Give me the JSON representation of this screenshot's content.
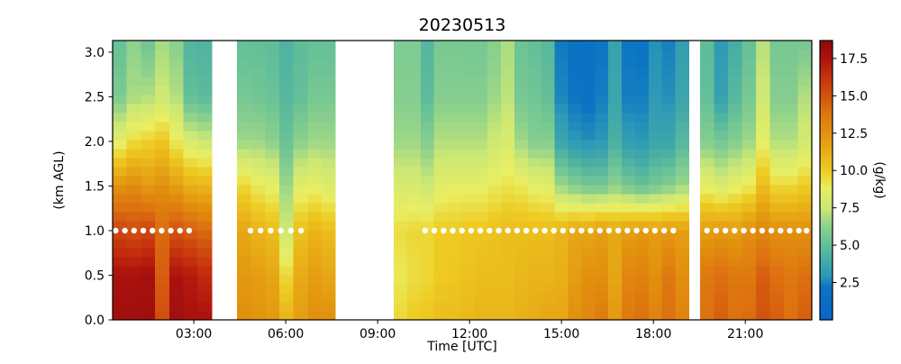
{
  "figure": {
    "background": "#ffffff",
    "title": "20230513",
    "xlabel": "Time [UTC]",
    "ylabel": "(km AGL)",
    "colorbar_label": "(g/kg)"
  },
  "chart_data": {
    "type": "heatmap",
    "title": "20230513",
    "xlabel": "Time [UTC]",
    "ylabel": "(km AGL)",
    "colorbar_label": "(g/kg)",
    "x_units": "hours UTC",
    "y_units": "km AGL",
    "value_units": "g/kg",
    "xlim": [
      0.35,
      23.17
    ],
    "ylim": [
      0,
      3.13
    ],
    "grid": false,
    "xticks": [
      {
        "t": 3,
        "label": "03:00"
      },
      {
        "t": 6,
        "label": "06:00"
      },
      {
        "t": 9,
        "label": "09:00"
      },
      {
        "t": 12,
        "label": "12:00"
      },
      {
        "t": 15,
        "label": "15:00"
      },
      {
        "t": 18,
        "label": "18:00"
      },
      {
        "t": 21,
        "label": "21:00"
      }
    ],
    "yticks": [
      0.0,
      0.5,
      1.0,
      1.5,
      2.0,
      2.5,
      3.0
    ],
    "colorbar": {
      "vmin": 0,
      "vmax": 18.7,
      "ticks": [
        2.5,
        5.0,
        7.5,
        10.0,
        12.5,
        15.0,
        17.5
      ],
      "stops": [
        [
          0.0,
          "#0a64c8"
        ],
        [
          2.2,
          "#0b74c4"
        ],
        [
          3.0,
          "#2e9ab6"
        ],
        [
          4.0,
          "#45aca6"
        ],
        [
          5.0,
          "#63bf99"
        ],
        [
          6.3,
          "#8fd28c"
        ],
        [
          7.5,
          "#cde874"
        ],
        [
          8.8,
          "#e9ee62"
        ],
        [
          10.0,
          "#eecb22"
        ],
        [
          12.5,
          "#e2920e"
        ],
        [
          14.0,
          "#dd7010"
        ],
        [
          15.0,
          "#d2520f"
        ],
        [
          16.5,
          "#c22c0e"
        ],
        [
          17.5,
          "#ad120d"
        ],
        [
          18.7,
          "#8d0a0c"
        ]
      ]
    },
    "data_gaps_hours": [
      [
        3.58,
        4.41
      ],
      [
        7.62,
        9.53
      ],
      [
        19.16,
        19.53
      ]
    ],
    "profile_heights_km": [
      0,
      0.5,
      1.0,
      1.5,
      2.0,
      2.5,
      3.2
    ],
    "columns": [
      {
        "t0": 0.35,
        "t1": 0.81,
        "q": [
          18.0,
          17.6,
          15.5,
          12.5,
          8.5,
          5.8,
          5.0
        ]
      },
      {
        "t0": 0.81,
        "t1": 1.27,
        "q": [
          18.0,
          17.6,
          15.2,
          12.8,
          9.5,
          6.8,
          6.2
        ]
      },
      {
        "t0": 1.27,
        "t1": 1.73,
        "q": [
          18.0,
          17.8,
          15.5,
          12.2,
          9.8,
          7.0,
          5.2
        ]
      },
      {
        "t0": 1.73,
        "t1": 2.2,
        "q": [
          15.2,
          14.6,
          14.2,
          12.6,
          10.2,
          7.6,
          6.6
        ]
      },
      {
        "t0": 2.2,
        "t1": 2.66,
        "q": [
          18.0,
          17.5,
          15.0,
          12.0,
          9.0,
          7.0,
          6.0
        ]
      },
      {
        "t0": 2.66,
        "t1": 3.12,
        "q": [
          17.6,
          17.2,
          14.6,
          11.2,
          8.0,
          5.0,
          4.4
        ]
      },
      {
        "t0": 3.12,
        "t1": 3.58,
        "q": [
          17.6,
          16.6,
          14.2,
          11.0,
          7.6,
          4.8,
          4.3
        ]
      },
      {
        "t0": 4.41,
        "t1": 4.87,
        "q": [
          12.6,
          12.2,
          11.6,
          9.6,
          6.6,
          5.6,
          5.0
        ]
      },
      {
        "t0": 4.87,
        "t1": 5.33,
        "q": [
          12.4,
          12.0,
          11.0,
          9.0,
          6.6,
          5.4,
          5.0
        ]
      },
      {
        "t0": 5.33,
        "t1": 5.79,
        "q": [
          12.2,
          11.6,
          10.6,
          8.6,
          6.2,
          5.2,
          4.8
        ]
      },
      {
        "t0": 5.79,
        "t1": 6.25,
        "q": [
          11.0,
          9.6,
          7.6,
          6.6,
          5.2,
          4.6,
          4.3
        ]
      },
      {
        "t0": 6.25,
        "t1": 6.71,
        "q": [
          12.0,
          11.4,
          10.4,
          8.4,
          6.2,
          5.0,
          4.8
        ]
      },
      {
        "t0": 6.71,
        "t1": 7.16,
        "q": [
          12.6,
          12.0,
          11.0,
          8.6,
          6.6,
          5.6,
          5.0
        ]
      },
      {
        "t0": 7.16,
        "t1": 7.62,
        "q": [
          12.6,
          11.6,
          10.6,
          8.2,
          6.6,
          5.6,
          5.0
        ]
      },
      {
        "t0": 9.53,
        "t1": 9.97,
        "q": [
          9.6,
          9.0,
          9.4,
          8.0,
          6.6,
          6.0,
          5.8
        ]
      },
      {
        "t0": 9.97,
        "t1": 10.41,
        "q": [
          10.0,
          9.4,
          9.6,
          8.0,
          6.6,
          6.0,
          5.8
        ]
      },
      {
        "t0": 10.41,
        "t1": 10.84,
        "q": [
          10.2,
          9.6,
          9.6,
          7.6,
          6.0,
          4.8,
          4.5
        ]
      },
      {
        "t0": 10.84,
        "t1": 11.28,
        "q": [
          10.6,
          10.0,
          10.0,
          8.4,
          7.0,
          6.0,
          5.6
        ]
      },
      {
        "t0": 11.28,
        "t1": 11.72,
        "q": [
          10.6,
          10.2,
          10.0,
          8.6,
          7.0,
          6.0,
          5.6
        ]
      },
      {
        "t0": 11.72,
        "t1": 12.16,
        "q": [
          10.8,
          10.4,
          10.2,
          8.6,
          7.0,
          6.0,
          5.5
        ]
      },
      {
        "t0": 12.16,
        "t1": 12.59,
        "q": [
          11.0,
          10.6,
          10.2,
          8.6,
          7.0,
          6.0,
          5.5
        ]
      },
      {
        "t0": 12.59,
        "t1": 13.03,
        "q": [
          11.0,
          10.6,
          10.4,
          9.0,
          7.6,
          6.6,
          6.0
        ]
      },
      {
        "t0": 13.03,
        "t1": 13.47,
        "q": [
          11.0,
          10.6,
          10.6,
          9.2,
          8.0,
          7.2,
          6.8
        ]
      },
      {
        "t0": 13.47,
        "t1": 13.91,
        "q": [
          11.2,
          10.8,
          10.6,
          9.0,
          6.6,
          5.6,
          5.2
        ]
      },
      {
        "t0": 13.91,
        "t1": 14.34,
        "q": [
          11.4,
          11.0,
          10.6,
          8.6,
          6.0,
          5.4,
          5.0
        ]
      },
      {
        "t0": 14.34,
        "t1": 14.78,
        "q": [
          11.6,
          11.0,
          10.6,
          8.4,
          6.0,
          5.0,
          4.6
        ]
      },
      {
        "t0": 14.78,
        "t1": 15.22,
        "q": [
          11.6,
          11.2,
          11.0,
          6.6,
          3.6,
          2.6,
          2.3
        ]
      },
      {
        "t0": 15.22,
        "t1": 15.66,
        "q": [
          12.6,
          12.0,
          11.6,
          6.0,
          3.0,
          2.2,
          2.0
        ]
      },
      {
        "t0": 15.66,
        "t1": 16.1,
        "q": [
          13.0,
          12.6,
          11.6,
          5.6,
          2.8,
          2.0,
          1.9
        ]
      },
      {
        "t0": 16.1,
        "t1": 16.53,
        "q": [
          13.6,
          12.6,
          12.0,
          5.6,
          3.0,
          2.4,
          2.2
        ]
      },
      {
        "t0": 16.53,
        "t1": 16.97,
        "q": [
          12.2,
          11.6,
          11.6,
          6.2,
          4.2,
          3.6,
          3.4
        ]
      },
      {
        "t0": 16.97,
        "t1": 17.41,
        "q": [
          13.6,
          13.0,
          12.0,
          5.6,
          3.2,
          2.4,
          2.2
        ]
      },
      {
        "t0": 17.41,
        "t1": 17.85,
        "q": [
          14.0,
          13.2,
          12.2,
          5.2,
          3.0,
          2.4,
          2.1
        ]
      },
      {
        "t0": 17.85,
        "t1": 18.28,
        "q": [
          13.2,
          12.6,
          12.0,
          5.6,
          3.6,
          3.0,
          2.8
        ]
      },
      {
        "t0": 18.28,
        "t1": 18.72,
        "q": [
          14.0,
          13.6,
          12.2,
          6.0,
          3.6,
          2.8,
          2.4
        ]
      },
      {
        "t0": 18.72,
        "t1": 19.16,
        "q": [
          13.2,
          12.6,
          12.0,
          6.6,
          4.6,
          3.6,
          3.2
        ]
      },
      {
        "t0": 19.53,
        "t1": 19.98,
        "q": [
          14.0,
          13.6,
          12.0,
          8.6,
          6.0,
          5.0,
          4.8
        ]
      },
      {
        "t0": 19.98,
        "t1": 20.44,
        "q": [
          14.6,
          14.0,
          12.2,
          8.0,
          5.6,
          3.4,
          3.0
        ]
      },
      {
        "t0": 20.44,
        "t1": 20.89,
        "q": [
          14.0,
          13.6,
          12.0,
          8.6,
          6.0,
          4.6,
          4.0
        ]
      },
      {
        "t0": 20.89,
        "t1": 21.35,
        "q": [
          14.2,
          13.6,
          12.6,
          9.0,
          6.6,
          5.6,
          5.0
        ]
      },
      {
        "t0": 21.35,
        "t1": 21.8,
        "q": [
          15.0,
          14.6,
          13.0,
          10.6,
          8.6,
          7.6,
          7.0
        ]
      },
      {
        "t0": 21.8,
        "t1": 22.26,
        "q": [
          14.6,
          14.0,
          12.6,
          9.6,
          7.0,
          6.0,
          5.5
        ]
      },
      {
        "t0": 22.26,
        "t1": 22.71,
        "q": [
          14.0,
          13.6,
          12.6,
          9.6,
          7.0,
          6.0,
          5.5
        ]
      },
      {
        "t0": 22.71,
        "t1": 23.17,
        "q": [
          14.6,
          14.0,
          12.6,
          10.0,
          7.8,
          7.0,
          5.4
        ]
      }
    ],
    "marker_series": {
      "name": "white markers at 1.0 km",
      "height_km": 1.0,
      "color": "#ffffff",
      "times": [
        0.45,
        0.75,
        1.05,
        1.35,
        1.65,
        1.95,
        2.25,
        2.55,
        2.85,
        4.85,
        5.18,
        5.51,
        5.84,
        6.17,
        6.5,
        10.55,
        10.85,
        11.15,
        11.45,
        11.75,
        12.05,
        12.35,
        12.65,
        12.95,
        13.25,
        13.55,
        13.85,
        14.15,
        14.45,
        14.75,
        15.05,
        15.35,
        15.65,
        15.95,
        16.25,
        16.55,
        16.85,
        17.15,
        17.45,
        17.75,
        18.05,
        18.35,
        18.65,
        19.75,
        20.05,
        20.35,
        20.65,
        20.95,
        21.25,
        21.55,
        21.85,
        22.15,
        22.45,
        22.75,
        23.0
      ]
    }
  }
}
